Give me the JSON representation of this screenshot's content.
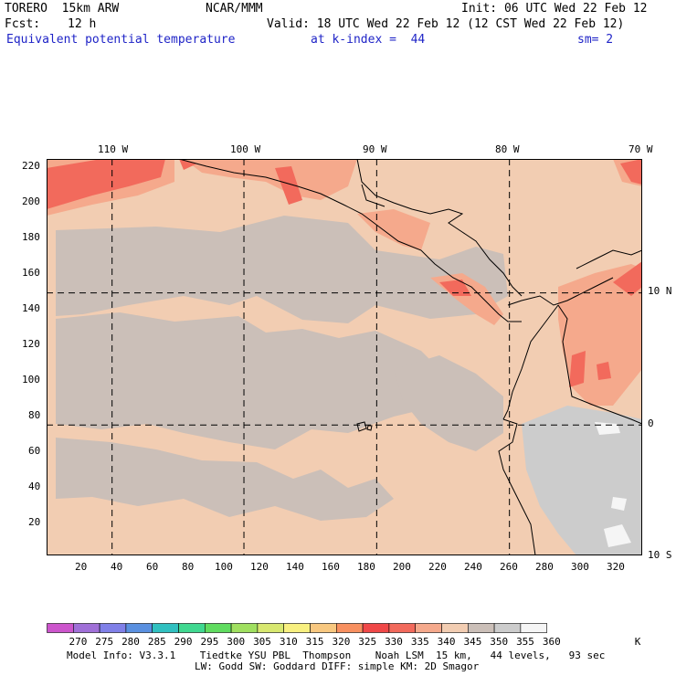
{
  "header": {
    "model": "TORERO  15km ARW",
    "org": "NCAR/MMM",
    "init": "Init: 06 UTC Wed 22 Feb 12",
    "fcst_label": "Fcst:",
    "fcst_value": "12 h",
    "valid": "Valid: 18 UTC Wed 22 Feb 12 (12 CST Wed 22 Feb 12)",
    "field": "Equivalent potential temperature",
    "level": "at k-index =  44",
    "smooth": "sm= 2"
  },
  "map": {
    "lon_labels": [
      "110 W",
      "100 W",
      "90 W",
      "80 W",
      "70 W"
    ],
    "lat_labels": [
      "10 N",
      "0",
      "10 S"
    ],
    "y_ticks": [
      "220",
      "200",
      "180",
      "160",
      "140",
      "120",
      "100",
      "80",
      "60",
      "40",
      "20"
    ],
    "x_ticks": [
      "20",
      "40",
      "60",
      "80",
      "100",
      "120",
      "140",
      "160",
      "180",
      "200",
      "220",
      "240",
      "260",
      "280",
      "300",
      "320"
    ],
    "grid_y_range": [
      1,
      223
    ],
    "grid_x_range": [
      1,
      333
    ],
    "lon_lines_grid_x": [
      37.5,
      111,
      185,
      259
    ],
    "lat_lines_grid_y": [
      148,
      74
    ],
    "colors": {
      "background": "#f2cdb2",
      "cool": "#cbbfb8",
      "warm": "#f5a98c",
      "hot": "#f26a5c",
      "cold_land": "#cccccc",
      "white": "#f5f5f5"
    }
  },
  "colorbar": {
    "labels": [
      "270",
      "275",
      "280",
      "285",
      "290",
      "295",
      "300",
      "305",
      "310",
      "315",
      "320",
      "325",
      "330",
      "335",
      "340",
      "345",
      "350",
      "355",
      "360"
    ],
    "unit": "K",
    "colors": [
      "#cc55cc",
      "#a070d8",
      "#8080e8",
      "#5a90e0",
      "#30c0c0",
      "#40d890",
      "#60dc60",
      "#a0e060",
      "#d8e870",
      "#f8f080",
      "#f8c880",
      "#f89060",
      "#f04848",
      "#f26a5c",
      "#f5a98c",
      "#f2cdb2",
      "#cbbfb8",
      "#cccccc",
      "#f5f5f5"
    ]
  },
  "footer": {
    "line1": "Model Info: V3.3.1    Tiedtke YSU PBL  Thompson    Noah LSM  15 km,   44 levels,   93 sec",
    "line2": "LW: Godd SW: Goddard DIFF: simple KM: 2D Smagor"
  }
}
